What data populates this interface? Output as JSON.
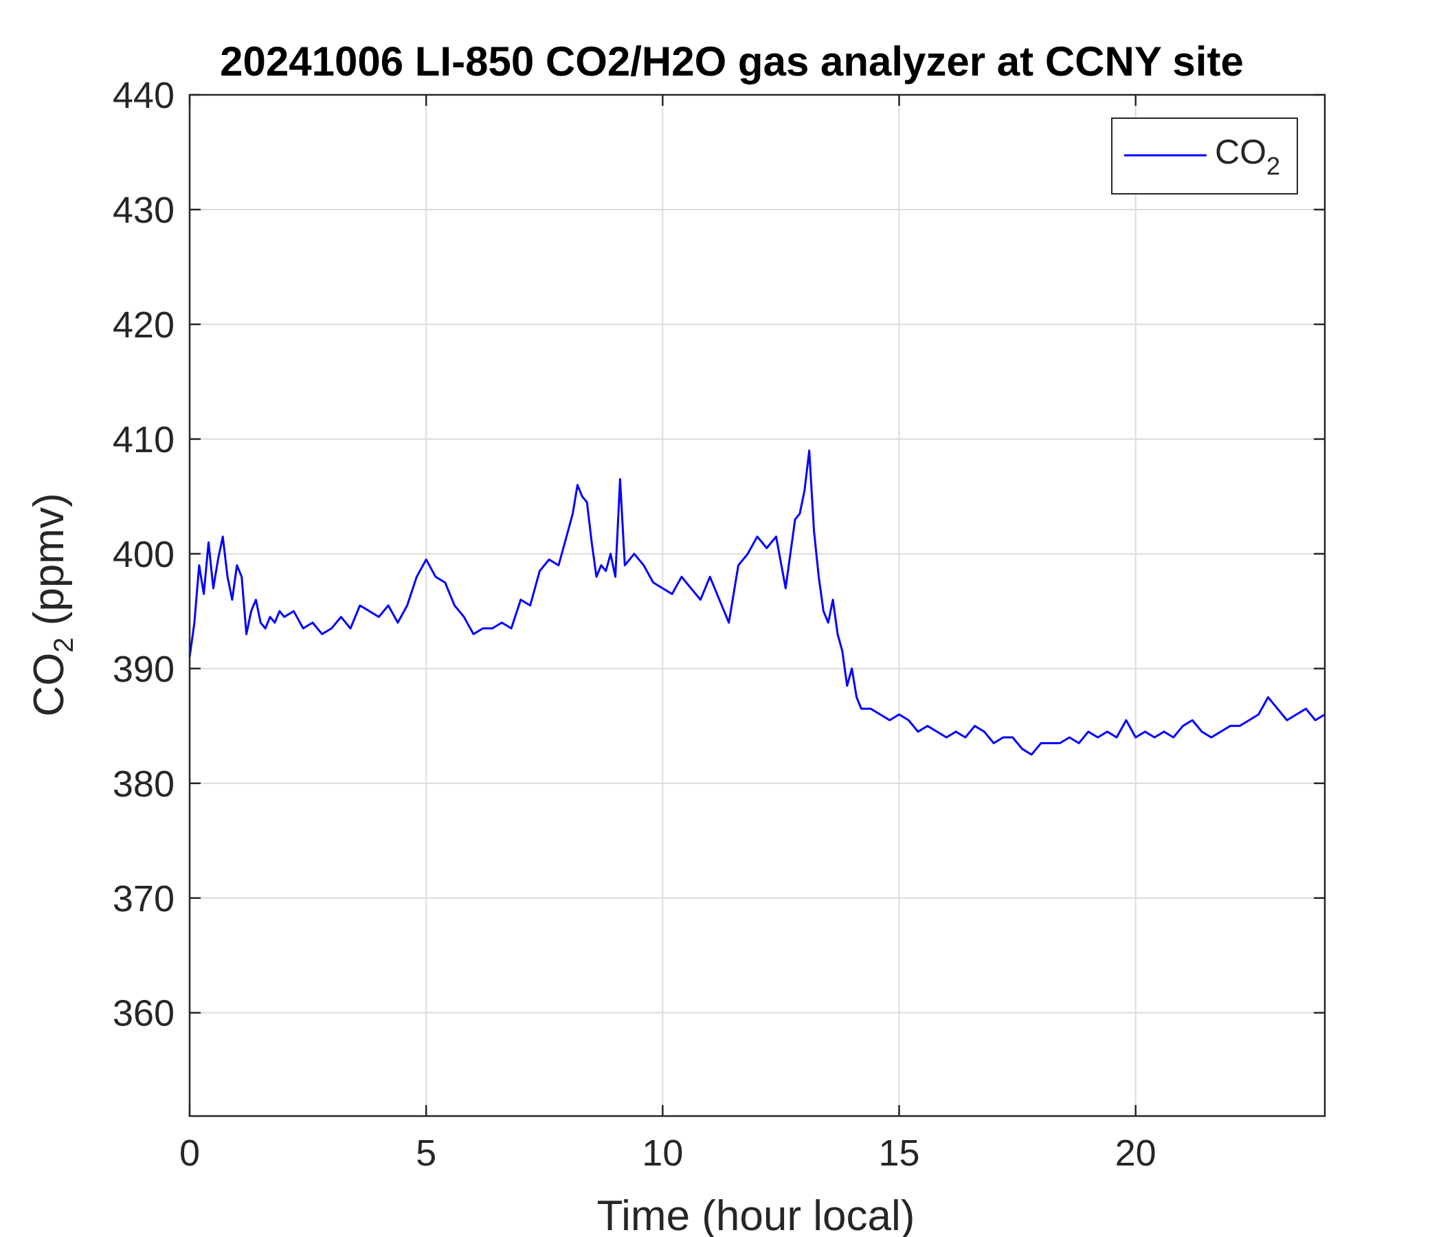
{
  "chart_data": {
    "type": "line",
    "title": "20241006 LI-850 CO2/H2O gas analyzer at CCNY site",
    "xlabel": "Time (hour local)",
    "ylabel": {
      "main": "CO",
      "sub": "2",
      "suffix": " (ppmv)"
    },
    "xlim": [
      0,
      24
    ],
    "ylim": [
      351,
      440
    ],
    "xticks": [
      0,
      5,
      10,
      15,
      20
    ],
    "xtick_labels": [
      "0",
      "5",
      "10",
      "15",
      "20"
    ],
    "yticks": [
      360,
      370,
      380,
      390,
      400,
      410,
      420,
      430,
      440
    ],
    "ytick_labels": [
      "360",
      "370",
      "380",
      "390",
      "400",
      "410",
      "420",
      "430",
      "440"
    ],
    "grid": true,
    "legend": {
      "position": "top-right"
    },
    "series": [
      {
        "name": {
          "main": "CO",
          "sub": "2"
        },
        "color": "#0000ff",
        "x": [
          0.0,
          0.1,
          0.2,
          0.3,
          0.4,
          0.5,
          0.6,
          0.7,
          0.8,
          0.9,
          1.0,
          1.1,
          1.2,
          1.3,
          1.4,
          1.5,
          1.6,
          1.7,
          1.8,
          1.9,
          2.0,
          2.2,
          2.4,
          2.6,
          2.8,
          3.0,
          3.2,
          3.4,
          3.6,
          3.8,
          4.0,
          4.2,
          4.4,
          4.6,
          4.8,
          5.0,
          5.2,
          5.4,
          5.6,
          5.8,
          6.0,
          6.2,
          6.4,
          6.6,
          6.8,
          7.0,
          7.2,
          7.4,
          7.6,
          7.8,
          8.0,
          8.1,
          8.2,
          8.3,
          8.4,
          8.5,
          8.6,
          8.7,
          8.8,
          8.9,
          9.0,
          9.1,
          9.2,
          9.3,
          9.4,
          9.6,
          9.8,
          10.0,
          10.2,
          10.4,
          10.6,
          10.8,
          11.0,
          11.2,
          11.4,
          11.6,
          11.8,
          12.0,
          12.2,
          12.4,
          12.6,
          12.8,
          12.9,
          13.0,
          13.1,
          13.2,
          13.3,
          13.4,
          13.5,
          13.6,
          13.7,
          13.8,
          13.9,
          14.0,
          14.1,
          14.2,
          14.4,
          14.6,
          14.8,
          15.0,
          15.2,
          15.4,
          15.6,
          15.8,
          16.0,
          16.2,
          16.4,
          16.6,
          16.8,
          17.0,
          17.2,
          17.4,
          17.6,
          17.8,
          18.0,
          18.2,
          18.4,
          18.6,
          18.8,
          19.0,
          19.2,
          19.4,
          19.6,
          19.8,
          20.0,
          20.2,
          20.4,
          20.6,
          20.8,
          21.0,
          21.2,
          21.4,
          21.6,
          21.8,
          22.0,
          22.2,
          22.4,
          22.6,
          22.8,
          23.0,
          23.2,
          23.4,
          23.6,
          23.8,
          24.0
        ],
        "values": [
          391.0,
          394.0,
          399.0,
          396.5,
          401.0,
          397.0,
          399.5,
          401.5,
          398.0,
          396.0,
          399.0,
          398.0,
          393.0,
          395.0,
          396.0,
          394.0,
          393.5,
          394.5,
          394.0,
          395.0,
          394.5,
          395.0,
          393.5,
          394.0,
          393.0,
          393.5,
          394.5,
          393.5,
          395.5,
          395.0,
          394.5,
          395.5,
          394.0,
          395.5,
          398.0,
          399.5,
          398.0,
          397.5,
          395.5,
          394.5,
          393.0,
          393.5,
          393.5,
          394.0,
          393.5,
          396.0,
          395.5,
          398.5,
          399.5,
          399.0,
          402.0,
          403.5,
          406.0,
          405.0,
          404.5,
          401.0,
          398.0,
          399.0,
          398.5,
          400.0,
          398.0,
          406.5,
          399.0,
          399.5,
          400.0,
          399.0,
          397.5,
          397.0,
          396.5,
          398.0,
          397.0,
          396.0,
          398.0,
          396.0,
          394.0,
          399.0,
          400.0,
          401.5,
          400.5,
          401.5,
          397.0,
          403.0,
          403.5,
          405.5,
          409.0,
          402.0,
          398.0,
          395.0,
          394.0,
          396.0,
          393.0,
          391.5,
          388.5,
          390.0,
          387.5,
          386.5,
          386.5,
          386.0,
          385.5,
          386.0,
          385.5,
          384.5,
          385.0,
          384.5,
          384.0,
          384.5,
          384.0,
          385.0,
          384.5,
          383.5,
          384.0,
          384.0,
          383.0,
          382.5,
          383.5,
          383.5,
          383.5,
          384.0,
          383.5,
          384.5,
          384.0,
          384.5,
          384.0,
          385.5,
          384.0,
          384.5,
          384.0,
          384.5,
          384.0,
          385.0,
          385.5,
          384.5,
          384.0,
          384.5,
          385.0,
          385.0,
          385.5,
          386.0,
          387.5,
          386.5,
          385.5,
          386.0,
          386.5,
          385.5,
          386.0
        ]
      }
    ]
  }
}
